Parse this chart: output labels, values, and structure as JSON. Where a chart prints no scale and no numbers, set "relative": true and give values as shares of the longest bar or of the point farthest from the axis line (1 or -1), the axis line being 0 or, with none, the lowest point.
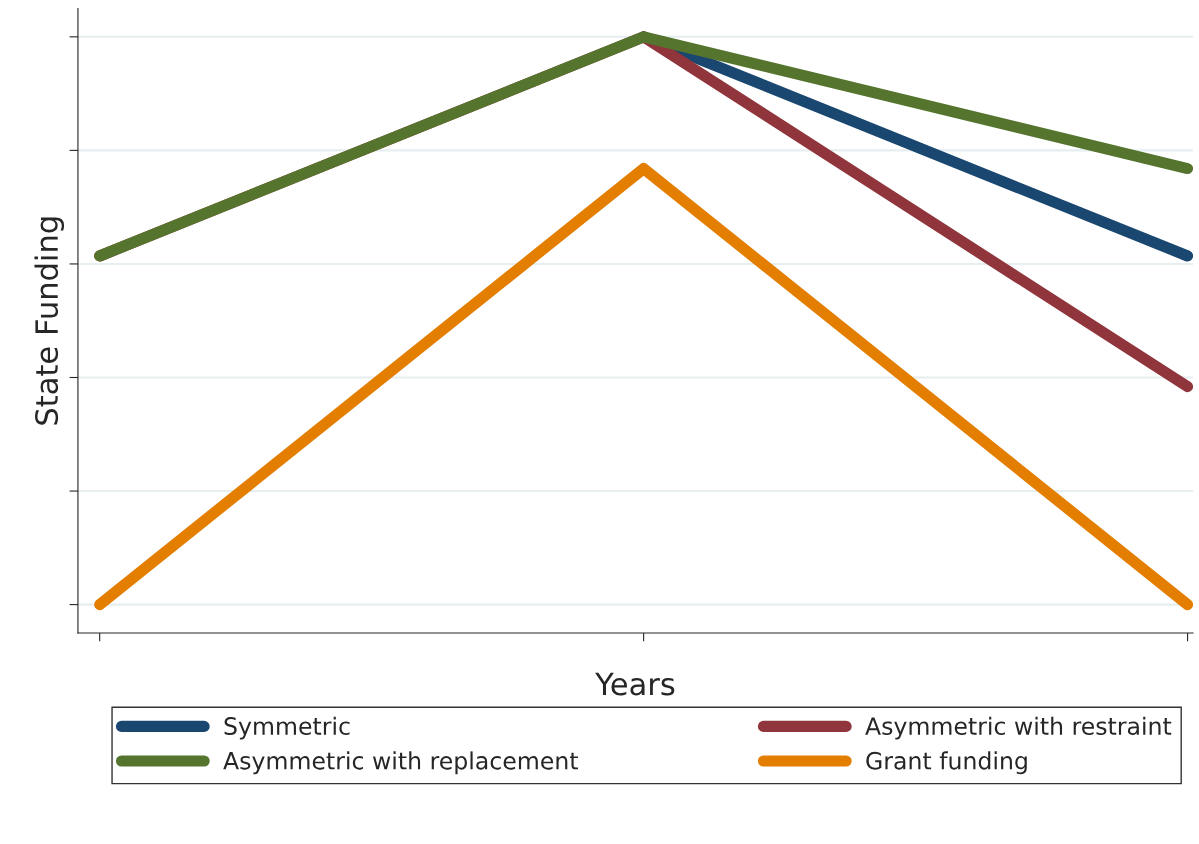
{
  "chart_data": {
    "type": "line",
    "relative": true,
    "xlabel": "Years",
    "ylabel": "State Funding",
    "categories": [
      null,
      null,
      null
    ],
    "series": [
      {
        "name": "Symmetric",
        "color": "#1a476f",
        "values": [
          null,
          1,
          0.614
        ]
      },
      {
        "name": "Asymmetric with restraint",
        "color": "#90353b",
        "values": [
          0.614,
          1,
          0.384
        ]
      },
      {
        "name": "Asymmetric with replacement",
        "color": "#55752f",
        "values": [
          0.614,
          1,
          0.768
        ]
      },
      {
        "name": "Grant funding",
        "color": "#e37e00",
        "values": [
          0,
          0.768,
          0
        ]
      }
    ],
    "grid": "y",
    "legend": "bottom",
    "marker": "none",
    "line_style": "solid",
    "tick_labels": false
  }
}
